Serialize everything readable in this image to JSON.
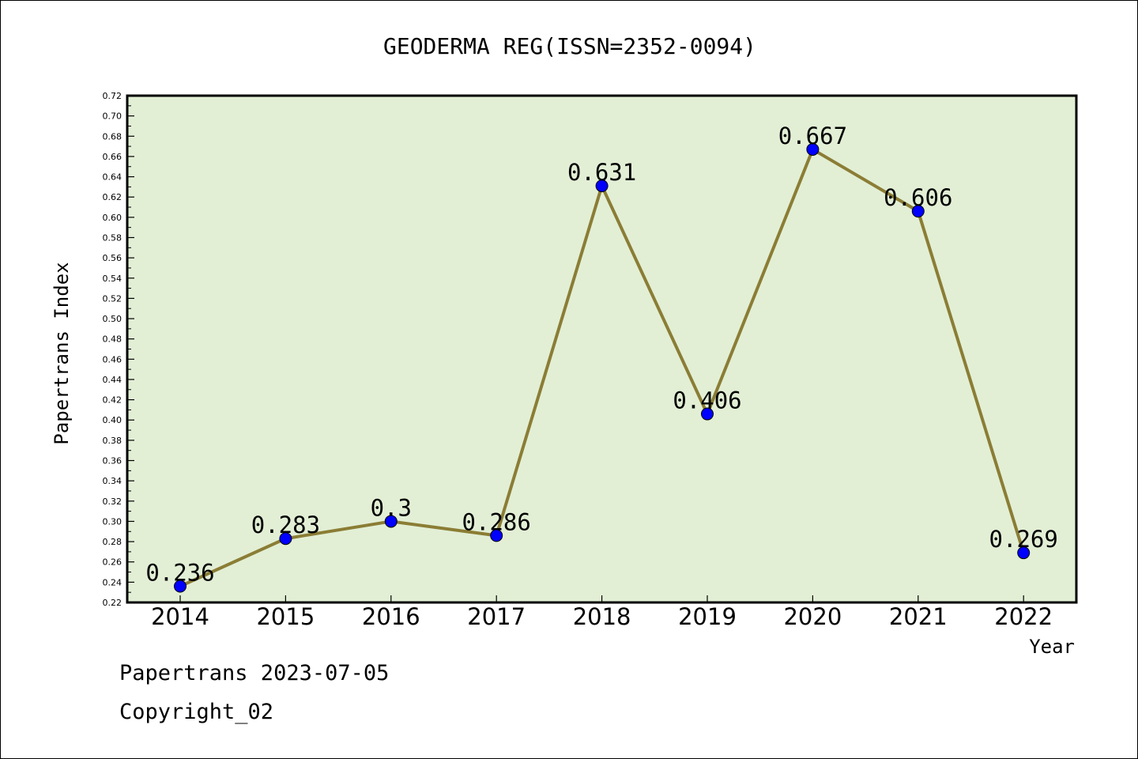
{
  "footer": {
    "stamp": "Papertrans 2023-07-05",
    "copyright": "Copyright_02"
  },
  "colors": {
    "plot_background": "#e2efd5",
    "line": "#8b7d35",
    "marker": "#0000ff",
    "frame": "#000000"
  },
  "chart_data": {
    "type": "line",
    "title": "GEODERMA REG(ISSN=2352-0094)",
    "xlabel": "Year",
    "ylabel": "Papertrans Index",
    "categories": [
      "2014",
      "2015",
      "2016",
      "2017",
      "2018",
      "2019",
      "2020",
      "2021",
      "2022"
    ],
    "series": [
      {
        "values": [
          0.236,
          0.283,
          0.3,
          0.286,
          0.631,
          0.406,
          0.667,
          0.606,
          0.269
        ],
        "labels": [
          "0.236",
          "0.283",
          "0.3",
          "0.286",
          "0.631",
          "0.406",
          "0.667",
          "0.606",
          "0.269"
        ]
      }
    ],
    "ylim": [
      0.22,
      0.72
    ],
    "ytick_step": 0.02,
    "yticks": [
      "0.22",
      "0.24",
      "0.26",
      "0.28",
      "0.30",
      "0.32",
      "0.34",
      "0.36",
      "0.38",
      "0.40",
      "0.42",
      "0.44",
      "0.46",
      "0.48",
      "0.50",
      "0.52",
      "0.54",
      "0.56",
      "0.58",
      "0.60",
      "0.62",
      "0.64",
      "0.66",
      "0.68",
      "0.70",
      "0.72"
    ],
    "grid": false,
    "legend": "none"
  }
}
